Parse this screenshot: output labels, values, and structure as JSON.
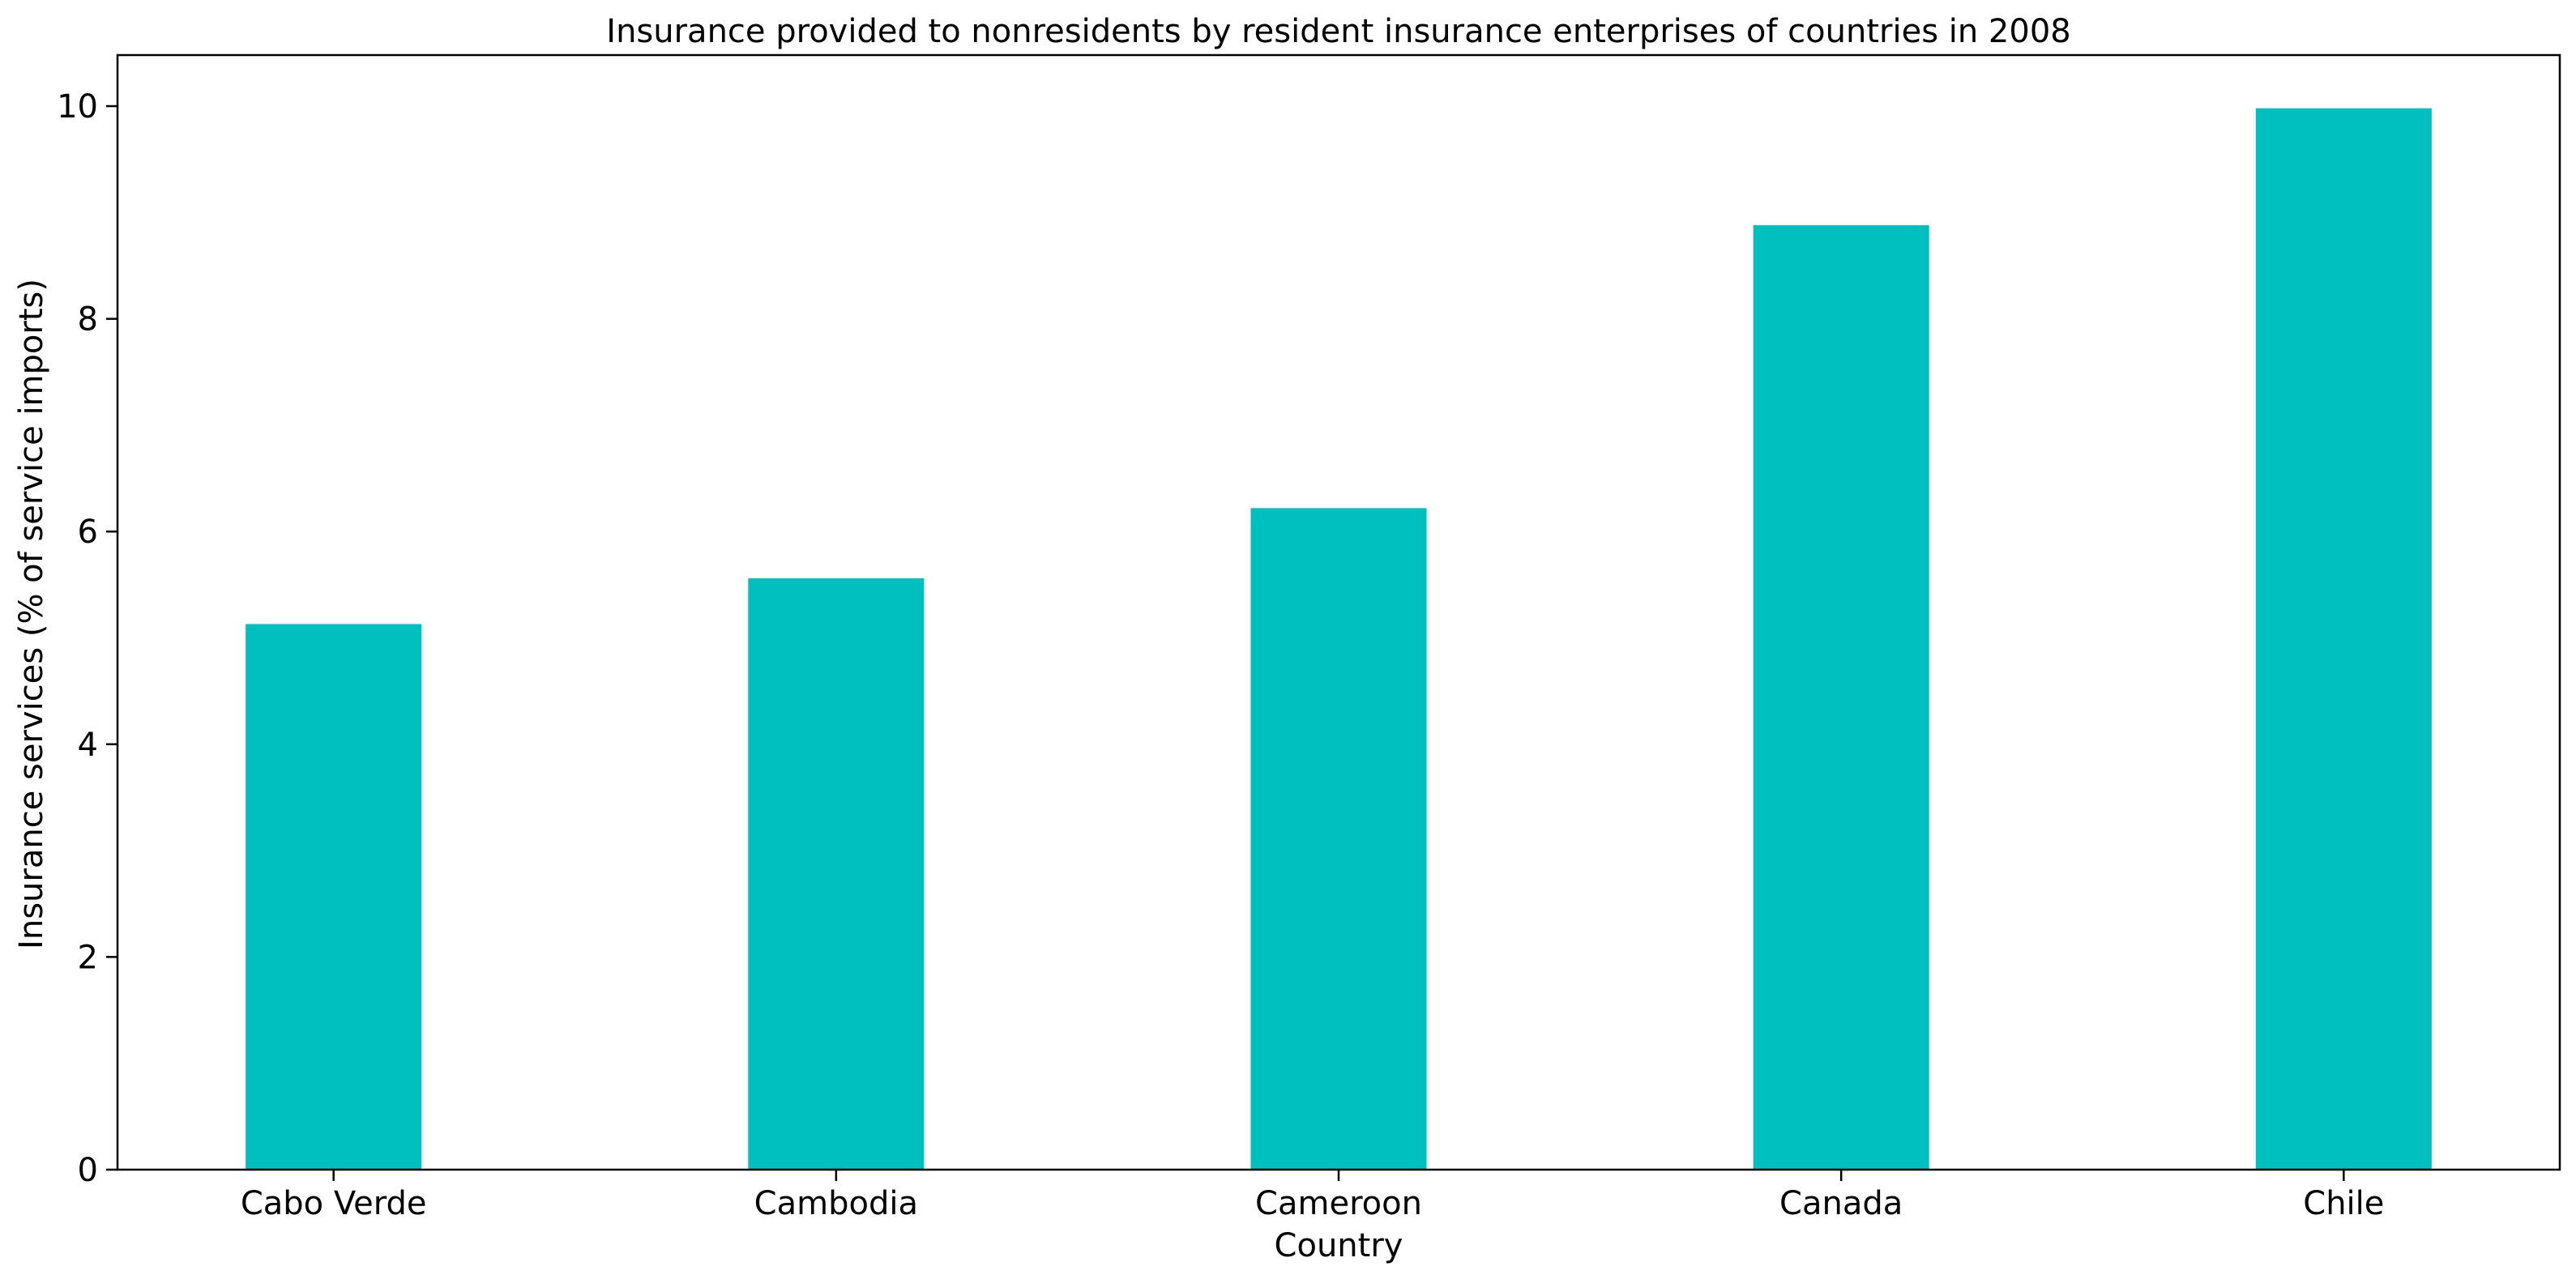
{
  "chart_data": {
    "type": "bar",
    "title": "Insurance provided to nonresidents by resident insurance enterprises of countries in 2008",
    "xlabel": "Country",
    "ylabel": "Insurance services (% of service imports)",
    "categories": [
      "Cabo Verde",
      "Cambodia",
      "Cameroon",
      "Canada",
      "Chile"
    ],
    "values": [
      5.13,
      5.56,
      6.22,
      8.88,
      9.98
    ],
    "ylim": [
      0,
      10.48
    ],
    "yticks": [
      0,
      2,
      4,
      6,
      8,
      10
    ],
    "grid": false,
    "legend": "none",
    "bar_color": "#00BFBF"
  }
}
